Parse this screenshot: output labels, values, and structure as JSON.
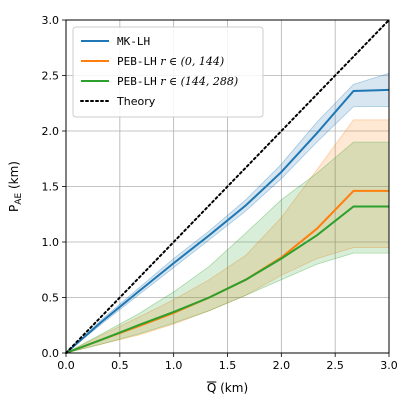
{
  "chart_data": {
    "type": "line",
    "xlim": [
      0,
      3
    ],
    "ylim": [
      0,
      3
    ],
    "grid": true,
    "x_ticks": [
      "0.0",
      "0.5",
      "1.0",
      "1.5",
      "2.0",
      "2.5",
      "3.0"
    ],
    "y_ticks": [
      "0.0",
      "0.5",
      "1.0",
      "1.5",
      "2.0",
      "2.5",
      "3.0"
    ],
    "xlabel_main": "Q",
    "xlabel_unit": " (km)",
    "ylabel_main": "P",
    "ylabel_sub": "AE",
    "ylabel_unit": " (km)",
    "legend_position": "top-left",
    "series": [
      {
        "name": "MK-LH",
        "name_code": "MK-LH",
        "name_math": "",
        "color": "#1f77b4",
        "dash": "solid",
        "x": [
          0,
          0.33,
          0.67,
          1.0,
          1.33,
          1.67,
          2.0,
          2.33,
          2.67,
          3.0
        ],
        "y": [
          0,
          0.28,
          0.55,
          0.81,
          1.06,
          1.33,
          1.63,
          1.98,
          2.36,
          2.37
        ],
        "band_low": [
          0,
          0.26,
          0.52,
          0.77,
          1.02,
          1.28,
          1.57,
          1.9,
          2.22,
          2.22
        ],
        "band_high": [
          0,
          0.3,
          0.58,
          0.85,
          1.1,
          1.38,
          1.7,
          2.08,
          2.42,
          2.52
        ]
      },
      {
        "name": "PEB-LH r ∈ (0, 144)",
        "name_code": "PEB-LH",
        "name_math": " r ∈ (0, 144)",
        "color": "#ff7f0e",
        "dash": "solid",
        "x": [
          0,
          0.33,
          0.67,
          1.0,
          1.33,
          1.67,
          2.0,
          2.33,
          2.67,
          3.0
        ],
        "y": [
          0,
          0.12,
          0.24,
          0.36,
          0.5,
          0.66,
          0.86,
          1.12,
          1.46,
          1.46
        ],
        "band_low": [
          0,
          0.08,
          0.16,
          0.26,
          0.38,
          0.52,
          0.7,
          0.85,
          0.95,
          0.95
        ],
        "band_high": [
          0,
          0.16,
          0.32,
          0.48,
          0.66,
          0.88,
          1.22,
          1.65,
          2.1,
          2.1
        ]
      },
      {
        "name": "PEB-LH r ∈ (144, 288)",
        "name_code": "PEB-LH",
        "name_math": " r ∈ (144, 288)",
        "color": "#2ca02c",
        "dash": "solid",
        "x": [
          0,
          0.33,
          0.67,
          1.0,
          1.33,
          1.67,
          2.0,
          2.33,
          2.67,
          3.0
        ],
        "y": [
          0,
          0.12,
          0.25,
          0.37,
          0.5,
          0.66,
          0.85,
          1.06,
          1.32,
          1.32
        ],
        "band_low": [
          0,
          0.08,
          0.17,
          0.27,
          0.38,
          0.52,
          0.66,
          0.8,
          0.9,
          0.9
        ],
        "band_high": [
          0,
          0.17,
          0.35,
          0.55,
          0.78,
          1.08,
          1.38,
          1.62,
          1.9,
          1.9
        ]
      },
      {
        "name": "Theory",
        "name_code": "",
        "name_math": "",
        "color": "#000000",
        "dash": "dotted",
        "x": [
          0,
          3.0
        ],
        "y": [
          0,
          3.0
        ]
      }
    ]
  }
}
